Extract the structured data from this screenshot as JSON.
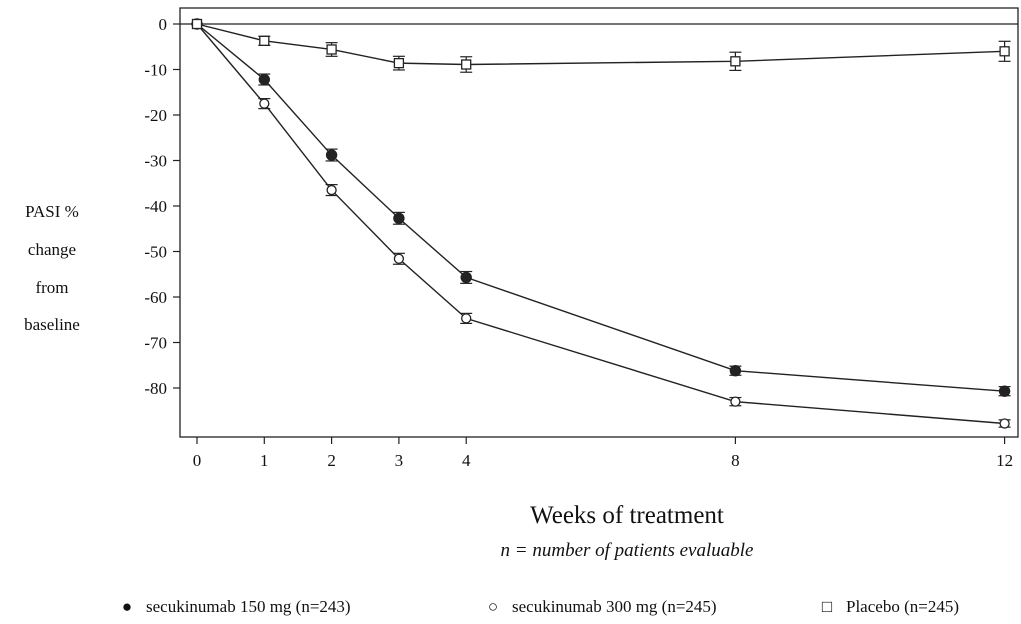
{
  "chart_data": {
    "type": "line",
    "title": "",
    "xlabel": "Weeks of treatment",
    "xlabel_note": "n = number of patients evaluable",
    "ylabel_lines": [
      "PASI %",
      "change",
      "from",
      "baseline"
    ],
    "x": [
      0,
      1,
      2,
      3,
      4,
      8,
      12
    ],
    "x_ticks": [
      "0",
      "1",
      "2",
      "3",
      "4",
      "8",
      "12"
    ],
    "y_ticks": [
      "0",
      "-10",
      "-20",
      "-30",
      "-40",
      "-50",
      "-60",
      "-70",
      "-80"
    ],
    "xlim": [
      0,
      12
    ],
    "ylim": [
      -91,
      0
    ],
    "grid": false,
    "legend_position": "bottom",
    "series": [
      {
        "name": "secukinumab 150 mg (n=243)",
        "marker": "filled-circle",
        "values": [
          0,
          -12.2,
          -28.8,
          -42.7,
          -55.7,
          -76.2,
          -80.7
        ],
        "err": [
          0.5,
          1.2,
          1.3,
          1.3,
          1.3,
          1.0,
          1.0
        ]
      },
      {
        "name": "secukinumab 300 mg (n=245)",
        "marker": "open-circle",
        "values": [
          0,
          -17.5,
          -36.5,
          -51.6,
          -64.7,
          -83.0,
          -87.8
        ],
        "err": [
          0.5,
          1.1,
          1.2,
          1.2,
          1.1,
          0.9,
          0.8
        ]
      },
      {
        "name": "Placebo (n=245)",
        "marker": "open-square",
        "values": [
          0,
          -3.7,
          -5.6,
          -8.6,
          -8.9,
          -8.2,
          -6.0
        ],
        "err": [
          0.5,
          1.0,
          1.5,
          1.5,
          1.7,
          2.0,
          2.2
        ]
      }
    ],
    "colors": {
      "line": "#222222",
      "axis": "#222222",
      "background": "#ffffff"
    }
  }
}
